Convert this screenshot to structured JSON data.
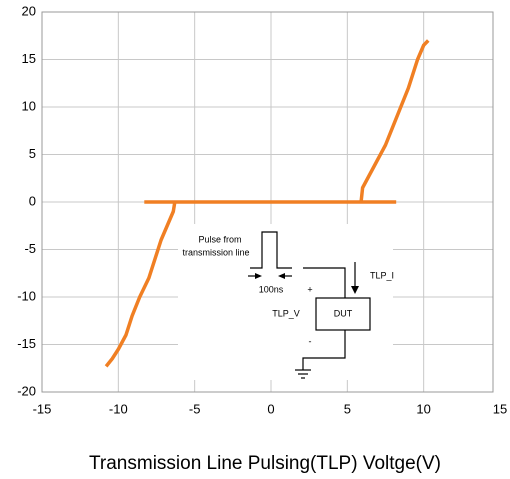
{
  "chart_data": {
    "type": "line",
    "x_label": "Transmission Line Pulsing(TLP) Voltge(V)",
    "x": [
      -8.3,
      8.2,
      null,
      5.9,
      6.0,
      6.5,
      7.0,
      7.5,
      8.0,
      8.5,
      9.0,
      9.3,
      9.6,
      10.0,
      10.3,
      null,
      -6.3,
      -6.4,
      -6.8,
      -7.2,
      -7.6,
      -8.0,
      -8.6,
      -9.1,
      -9.5,
      -10.0,
      -10.4,
      -10.8
    ],
    "values": [
      0,
      0,
      null,
      0,
      1.5,
      3,
      4.5,
      6,
      8,
      10,
      12,
      13.5,
      15,
      16.5,
      17,
      null,
      0,
      -1,
      -2.5,
      -4,
      -6,
      -8,
      -10,
      -12,
      -14,
      -15.5,
      -16.5,
      -17.3
    ],
    "color": "#f07f23",
    "xlim": [
      -15,
      15
    ],
    "xticks": [
      -15,
      -10,
      -5,
      0,
      5,
      10,
      15
    ],
    "ylim": [
      -20,
      20
    ],
    "yticks": [
      -20,
      -15,
      -10,
      -5,
      0,
      5,
      10,
      15,
      20
    ],
    "grid": true,
    "annotations": [
      "Pulse from",
      "transmission line",
      "100ns",
      "TLP_I",
      "+",
      "TLP_V",
      "DUT",
      "-"
    ]
  }
}
